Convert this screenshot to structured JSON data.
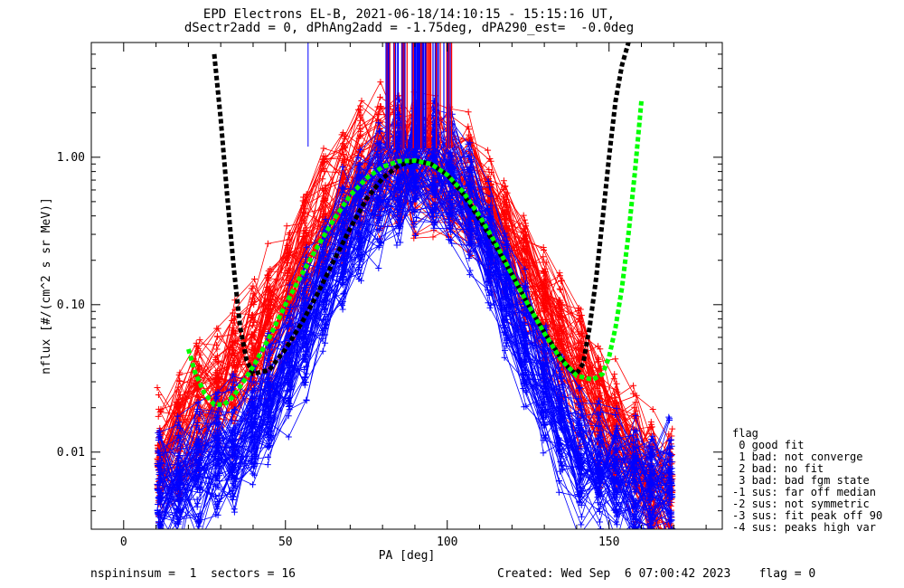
{
  "title": {
    "line1": "EPD Electrons EL-B, 2021-06-18/14:10:15 - 15:15:16 UT,",
    "line2": "dSectr2add = 0, dPhAng2add = -1.75deg, dPA290_est=  -0.0deg"
  },
  "flag_legend": {
    "heading": "flag",
    "items": [
      " 0 good fit",
      " 1 bad: not converge",
      " 2 bad: no fit",
      " 3 bad: bad fgm state",
      "-1 sus: far off median",
      "-2 sus: not symmetric",
      "-3 sus: fit peak off 90",
      "-4 sus: peaks high var"
    ]
  },
  "footer": {
    "left": "nspininsum =  1  sectors = 16",
    "right": "Created: Wed Sep  6 07:00:42 2023    flag = 0"
  },
  "colors": {
    "red": "#ff0000",
    "blue": "#0000ff",
    "black_fit": "#000000",
    "green_fit": "#00ff00"
  },
  "chart_data": {
    "type": "line",
    "xlabel": "PA [deg]",
    "ylabel": "nflux [#/(cm^2 s sr MeV)]",
    "xlim": [
      -10,
      185
    ],
    "ylim": [
      0.003,
      6
    ],
    "yscale": "log",
    "xticks": [
      0,
      50,
      100,
      150
    ],
    "xtick_labels": [
      "0",
      "50",
      "100",
      "150"
    ],
    "yticks": [
      0.01,
      0.1,
      1.0
    ],
    "ytick_labels": [
      "0.01",
      "0.10",
      "1.00"
    ],
    "series": [
      {
        "color": "red",
        "description_points_typical": {
          "x": [
            11,
            17,
            23,
            29,
            34,
            40,
            45,
            51,
            56,
            62,
            68,
            73,
            79,
            85,
            90,
            96,
            101,
            107,
            113,
            118,
            124,
            130,
            135,
            141,
            147,
            152,
            158,
            163,
            169
          ],
          "y": [
            0.008,
            0.012,
            0.018,
            0.025,
            0.032,
            0.045,
            0.07,
            0.12,
            0.2,
            0.33,
            0.52,
            0.72,
            0.85,
            0.88,
            0.9,
            0.88,
            0.8,
            0.6,
            0.42,
            0.28,
            0.17,
            0.1,
            0.06,
            0.035,
            0.02,
            0.013,
            0.009,
            0.006,
            0.005
          ]
        }
      },
      {
        "color": "blue",
        "description_points_typical": {
          "x": [
            11,
            17,
            23,
            29,
            34,
            40,
            45,
            51,
            56,
            62,
            68,
            73,
            79,
            85,
            90,
            96,
            101,
            107,
            113,
            118,
            124,
            130,
            135,
            141,
            147,
            152,
            158,
            163,
            169
          ],
          "y": [
            0.006,
            0.007,
            0.008,
            0.01,
            0.012,
            0.016,
            0.025,
            0.045,
            0.08,
            0.15,
            0.27,
            0.45,
            0.65,
            0.78,
            0.82,
            0.8,
            0.68,
            0.45,
            0.25,
            0.12,
            0.06,
            0.03,
            0.016,
            0.01,
            0.008,
            0.007,
            0.006,
            0.006,
            0.006
          ]
        }
      },
      {
        "color": "black_fit",
        "x": [
          28,
          30,
          32,
          34,
          36,
          38,
          40,
          45,
          50,
          55,
          60,
          65,
          70,
          75,
          80,
          85,
          90,
          95,
          100,
          105,
          110,
          115,
          120,
          125,
          130,
          135,
          138,
          140,
          142,
          144,
          146,
          148,
          150,
          152,
          154,
          156
        ],
        "y": [
          5.0,
          1.8,
          0.55,
          0.18,
          0.07,
          0.042,
          0.034,
          0.036,
          0.05,
          0.075,
          0.12,
          0.2,
          0.33,
          0.52,
          0.72,
          0.88,
          0.95,
          0.9,
          0.76,
          0.56,
          0.38,
          0.25,
          0.16,
          0.1,
          0.065,
          0.044,
          0.036,
          0.034,
          0.04,
          0.07,
          0.15,
          0.38,
          1.0,
          2.4,
          4.2,
          6.0
        ]
      },
      {
        "color": "green_fit",
        "x": [
          20,
          22,
          25,
          28,
          31,
          34,
          37,
          40,
          45,
          50,
          55,
          60,
          65,
          70,
          75,
          80,
          85,
          90,
          95,
          100,
          105,
          110,
          115,
          120,
          125,
          130,
          135,
          140,
          145,
          148,
          150,
          152,
          154,
          156,
          158,
          160
        ],
        "y": [
          0.05,
          0.035,
          0.025,
          0.021,
          0.021,
          0.024,
          0.03,
          0.038,
          0.06,
          0.1,
          0.16,
          0.25,
          0.38,
          0.55,
          0.72,
          0.86,
          0.94,
          0.95,
          0.9,
          0.76,
          0.58,
          0.4,
          0.26,
          0.16,
          0.1,
          0.064,
          0.043,
          0.033,
          0.031,
          0.034,
          0.044,
          0.07,
          0.13,
          0.3,
          0.8,
          2.4
        ]
      }
    ]
  }
}
